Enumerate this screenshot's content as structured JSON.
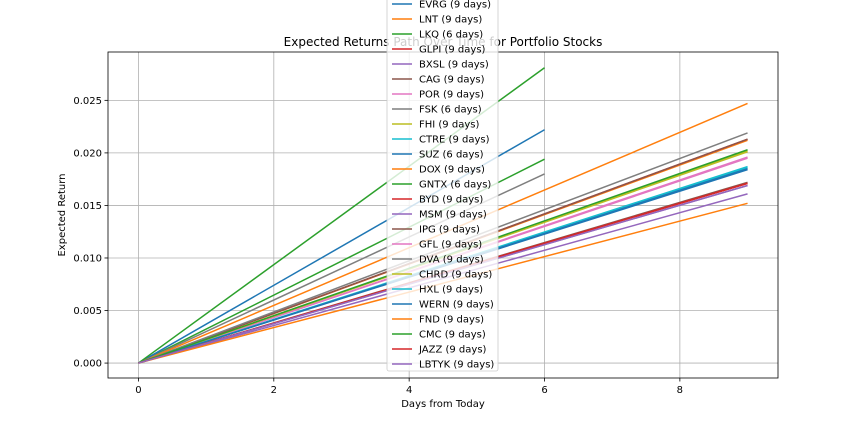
{
  "chart_data": {
    "type": "line",
    "title": "Expected Returns Path Over Time for Portfolio Stocks",
    "xlabel": "Days from Today",
    "ylabel": "Expected Return",
    "xlim": [
      -0.45,
      9.45
    ],
    "ylim": [
      -0.00142,
      0.0296
    ],
    "x_ticks": [
      0,
      2,
      4,
      6,
      8
    ],
    "x_tick_labels": [
      "0",
      "2",
      "4",
      "6",
      "8"
    ],
    "y_ticks": [
      0.0,
      0.005,
      0.01,
      0.015,
      0.02,
      0.025
    ],
    "y_tick_labels": [
      "0.000",
      "0.005",
      "0.010",
      "0.015",
      "0.020",
      "0.025"
    ],
    "grid": true,
    "legend_position": "upper-center",
    "series": [
      {
        "name": "EVRG (9 days)",
        "color": "#1f77b4",
        "x": [
          0,
          9
        ],
        "y": [
          0,
          0.0184
        ]
      },
      {
        "name": "LNT (9 days)",
        "color": "#ff7f0e",
        "x": [
          0,
          9
        ],
        "y": [
          0,
          0.0212
        ]
      },
      {
        "name": "LKQ (6 days)",
        "color": "#2ca02c",
        "x": [
          0,
          6
        ],
        "y": [
          0,
          0.0194
        ]
      },
      {
        "name": "GLPI (9 days)",
        "color": "#d62728",
        "x": [
          0,
          9
        ],
        "y": [
          0,
          0.0213
        ]
      },
      {
        "name": "BXSL (9 days)",
        "color": "#9467bd",
        "x": [
          0,
          9
        ],
        "y": [
          0,
          0.0169
        ]
      },
      {
        "name": "CAG (9 days)",
        "color": "#8c564b",
        "x": [
          0,
          9
        ],
        "y": [
          0,
          0.0172
        ]
      },
      {
        "name": "POR (9 days)",
        "color": "#e377c2",
        "x": [
          0,
          9
        ],
        "y": [
          0,
          0.0196
        ]
      },
      {
        "name": "FSK (6 days)",
        "color": "#7f7f7f",
        "x": [
          0,
          6
        ],
        "y": [
          0,
          0.018
        ]
      },
      {
        "name": "FHI (9 days)",
        "color": "#bcbd22",
        "x": [
          0,
          9
        ],
        "y": [
          0,
          0.0202
        ]
      },
      {
        "name": "CTRE (9 days)",
        "color": "#17becf",
        "x": [
          0,
          9
        ],
        "y": [
          0,
          0.0187
        ]
      },
      {
        "name": "SUZ (6 days)",
        "color": "#1f77b4",
        "x": [
          0,
          6
        ],
        "y": [
          0,
          0.0222
        ]
      },
      {
        "name": "DOX (9 days)",
        "color": "#ff7f0e",
        "x": [
          0,
          9
        ],
        "y": [
          0,
          0.0247
        ]
      },
      {
        "name": "GNTX (6 days)",
        "color": "#2ca02c",
        "x": [
          0,
          6
        ],
        "y": [
          0,
          0.0281
        ]
      },
      {
        "name": "BYD (9 days)",
        "color": "#d62728",
        "x": [
          0,
          9
        ],
        "y": [
          0,
          0.0171
        ]
      },
      {
        "name": "MSM (9 days)",
        "color": "#9467bd",
        "x": [
          0,
          9
        ],
        "y": [
          0,
          0.0161
        ]
      },
      {
        "name": "IPG (9 days)",
        "color": "#8c564b",
        "x": [
          0,
          9
        ],
        "y": [
          0,
          0.0213
        ]
      },
      {
        "name": "GFL (9 days)",
        "color": "#e377c2",
        "x": [
          0,
          9
        ],
        "y": [
          0,
          0.0195
        ]
      },
      {
        "name": "DVA (9 days)",
        "color": "#7f7f7f",
        "x": [
          0,
          9
        ],
        "y": [
          0,
          0.0219
        ]
      },
      {
        "name": "CHRD (9 days)",
        "color": "#bcbd22",
        "x": [
          0,
          9
        ],
        "y": [
          0,
          0.0201
        ]
      },
      {
        "name": "HXL (9 days)",
        "color": "#17becf",
        "x": [
          0,
          9
        ],
        "y": [
          0,
          0.0186
        ]
      },
      {
        "name": "WERN (9 days)",
        "color": "#1f77b4",
        "x": [
          0,
          9
        ],
        "y": [
          0,
          0.0185
        ]
      },
      {
        "name": "FND (9 days)",
        "color": "#ff7f0e",
        "x": [
          0,
          9
        ],
        "y": [
          0,
          0.0152
        ]
      },
      {
        "name": "CMC (9 days)",
        "color": "#2ca02c",
        "x": [
          0,
          9
        ],
        "y": [
          0,
          0.0203
        ]
      },
      {
        "name": "JAZZ (9 days)",
        "color": "#d62728",
        "x": [
          0,
          9
        ],
        "y": [
          0,
          0.0171
        ]
      },
      {
        "name": "LBTYK (9 days)",
        "color": "#9467bd",
        "x": [
          0,
          9
        ],
        "y": [
          0,
          0.0169
        ]
      }
    ]
  }
}
